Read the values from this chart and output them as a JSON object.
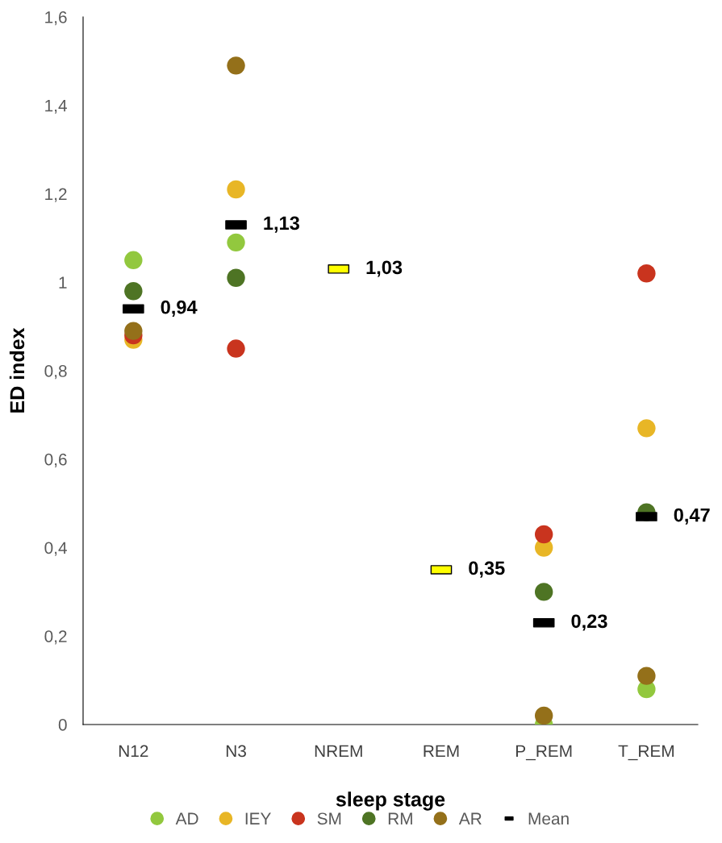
{
  "chart_data": {
    "type": "scatter",
    "xlabel": "sleep stage",
    "ylabel": "ED index",
    "categories": [
      "N12",
      "N3",
      "NREM",
      "REM",
      "P_REM",
      "T_REM"
    ],
    "ylim": [
      0,
      1.6
    ],
    "yticks": [
      0,
      {
        "value": 0.2,
        "label": "0,2"
      },
      {
        "value": 0.4,
        "label": "0,4"
      },
      {
        "value": 0.6,
        "label": "0,6"
      },
      {
        "value": 0.8,
        "label": "0,8"
      },
      1,
      {
        "value": 1.2,
        "label": "1,2"
      },
      {
        "value": 1.4,
        "label": "1,4"
      },
      {
        "value": 1.6,
        "label": "1,6"
      }
    ],
    "grid": false,
    "legend": "bottom",
    "marker": "circle",
    "series": [
      {
        "name": "AD",
        "color": "#92c83e",
        "values": [
          1.05,
          1.09,
          null,
          null,
          0.0,
          0.08
        ]
      },
      {
        "name": "IEY",
        "color": "#e8b626",
        "values": [
          0.87,
          1.21,
          null,
          null,
          0.4,
          0.67
        ]
      },
      {
        "name": "SM",
        "color": "#c9341e",
        "values": [
          0.88,
          0.85,
          null,
          null,
          0.43,
          1.02
        ]
      },
      {
        "name": "RM",
        "color": "#4e7424",
        "values": [
          0.98,
          1.01,
          null,
          null,
          0.3,
          0.48
        ]
      },
      {
        "name": "AR",
        "color": "#94701a",
        "values": [
          0.89,
          1.49,
          null,
          null,
          0.02,
          0.11
        ]
      },
      {
        "name": "Mean",
        "color": "#000000",
        "marker": "square",
        "colors": [
          "#000000",
          "#000000",
          "#ffff00",
          "#ffff00",
          "#000000",
          "#000000"
        ],
        "values": [
          0.94,
          1.13,
          1.03,
          0.35,
          0.23,
          0.47
        ],
        "value_labels": [
          "0,94",
          "1,13",
          "1,03",
          "0,35",
          "0,23",
          "0,47"
        ]
      }
    ]
  }
}
